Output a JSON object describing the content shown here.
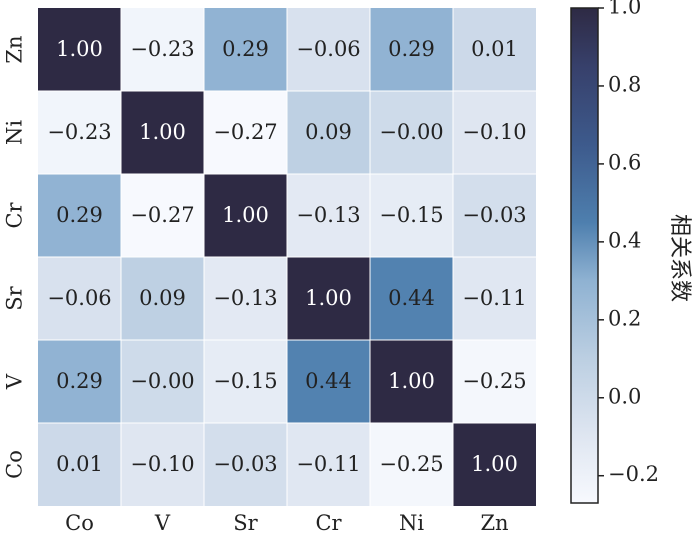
{
  "chart_data": {
    "type": "heatmap",
    "x_labels": [
      "Co",
      "V",
      "Sr",
      "Cr",
      "Ni",
      "Zn"
    ],
    "y_labels": [
      "Zn",
      "Ni",
      "Cr",
      "Sr",
      "V",
      "Co"
    ],
    "values": [
      [
        1.0,
        -0.23,
        0.29,
        -0.06,
        0.29,
        0.01
      ],
      [
        -0.23,
        1.0,
        -0.27,
        0.09,
        -0.0,
        -0.1
      ],
      [
        0.29,
        -0.27,
        1.0,
        -0.13,
        -0.15,
        -0.03
      ],
      [
        -0.06,
        0.09,
        -0.13,
        1.0,
        0.44,
        -0.11
      ],
      [
        0.29,
        -0.0,
        -0.15,
        0.44,
        1.0,
        -0.25
      ],
      [
        0.01,
        -0.1,
        -0.03,
        -0.11,
        -0.25,
        1.0
      ]
    ],
    "cell_labels": [
      [
        "1.00",
        "−0.23",
        "0.29",
        "−0.06",
        "0.29",
        "0.01"
      ],
      [
        "−0.23",
        "1.00",
        "−0.27",
        "0.09",
        "−0.00",
        "−0.10"
      ],
      [
        "0.29",
        "−0.27",
        "1.00",
        "−0.13",
        "−0.15",
        "−0.03"
      ],
      [
        "−0.06",
        "0.09",
        "−0.13",
        "1.00",
        "0.44",
        "−0.11"
      ],
      [
        "0.29",
        "−0.00",
        "−0.15",
        "0.44",
        "1.00",
        "−0.25"
      ],
      [
        "0.01",
        "−0.10",
        "−0.03",
        "−0.11",
        "−0.25",
        "1.00"
      ]
    ],
    "colorbar": {
      "label": "相关系数",
      "range": [
        -0.27,
        1.0
      ],
      "ticks": [
        1.0,
        0.8,
        0.6,
        0.4,
        0.2,
        0.0,
        -0.2
      ],
      "tick_labels": [
        "1.0",
        "0.8",
        "0.6",
        "0.4",
        "0.2",
        "0.0",
        "−0.2"
      ],
      "colormap_stops": [
        {
          "value": -0.27,
          "color": "#f7f9fe"
        },
        {
          "value": -0.1,
          "color": "#dfe6f1"
        },
        {
          "value": 0.1,
          "color": "#bccfe2"
        },
        {
          "value": 0.3,
          "color": "#8fb2d2"
        },
        {
          "value": 0.45,
          "color": "#4e7fae"
        },
        {
          "value": 0.65,
          "color": "#3d5a8c"
        },
        {
          "value": 0.85,
          "color": "#37406b"
        },
        {
          "value": 1.0,
          "color": "#2e2a44"
        }
      ]
    }
  }
}
